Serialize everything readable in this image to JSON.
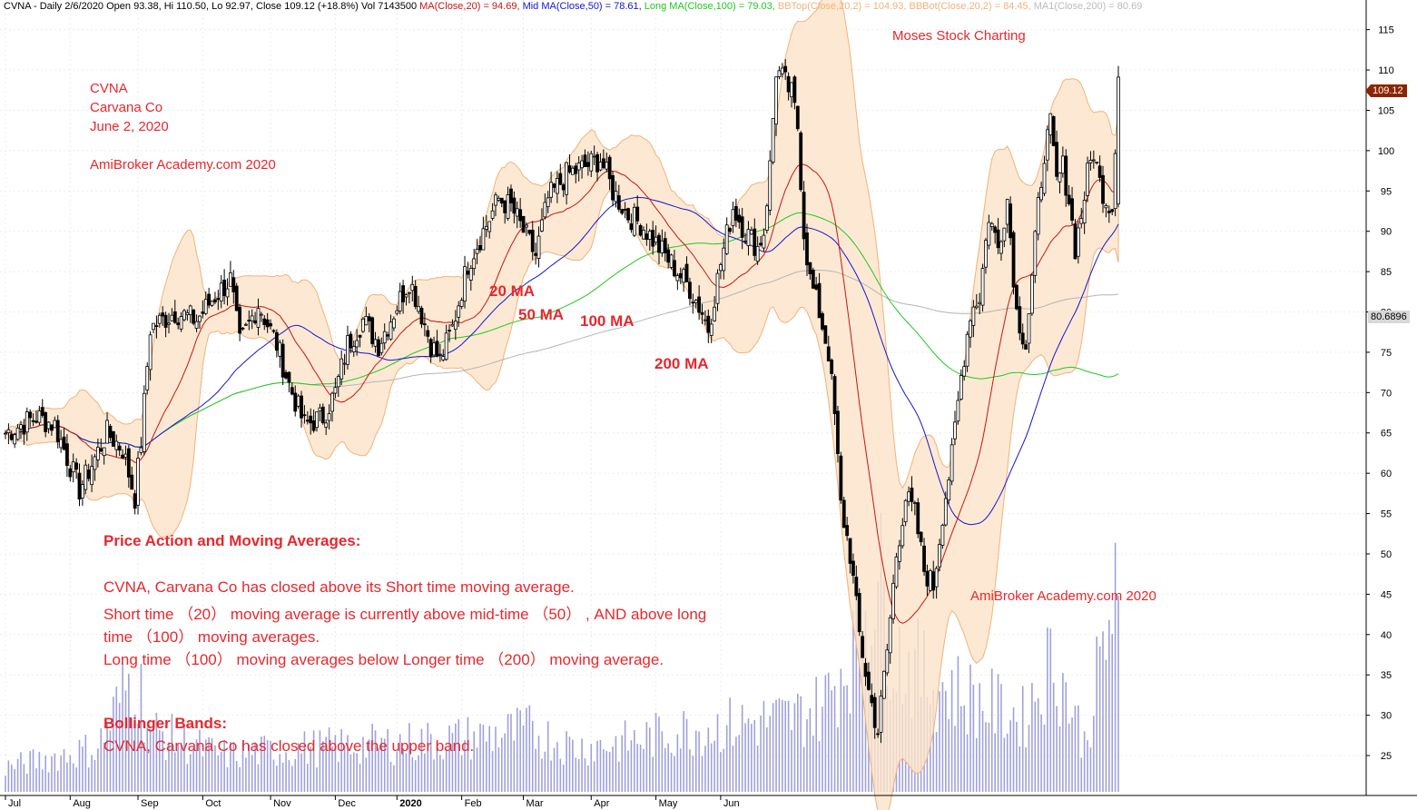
{
  "header": {
    "symbol_info": "CVNA - Daily 2/6/2020 Open 93.38, Hi 110.50, Lo 92.97, Close 109.12 (+18.8%) Vol 7143500",
    "ma20": "MA(Close,20) = 94.69,",
    "ma50": "Mid MA(Close,50) = 78.61,",
    "ma100": "Long MA(Close,100) = 79.03,",
    "bbtop": "BBTop(Close,20,2) = 104.93,",
    "bbbot": "BBBot(Close,20,2) = 84.45,",
    "ma200": "MA1(Close,200) = 80.69"
  },
  "annotations": {
    "ticker": "CVNA",
    "company": "Carvana Co",
    "date": "June 2, 2020",
    "brand_top": "AmiBroker Academy.com  2020",
    "brand_right": "AmiBroker Academy.com  2020",
    "moses": "Moses Stock Charting",
    "label_20ma": "20 MA",
    "label_50ma": "50 MA",
    "label_100ma": "100 MA",
    "label_200ma": "200 MA",
    "section1_title": "Price Action and Moving Averages:",
    "line1": "CVNA, Carvana Co has closed above its Short time moving average.",
    "line2": "Short time （20） moving average is currently above mid-time （50） , AND above long",
    "line3": "time （100） moving averages.",
    "line4": "Long time （100）  moving averages below Longer time （200）  moving average.",
    "section2_title": "Bollinger Bands:",
    "line5": "CVNA, Carvana Co has closed above the upper band."
  },
  "price_tags": {
    "last_close": "109.12",
    "ma200_value": "80.6896"
  },
  "colors": {
    "ma20": "#c81414",
    "ma50": "#1414d2",
    "ma100": "#1ec81e",
    "ma200": "#b4b4b4",
    "band_fill": "#fde3c8",
    "band_edge": "#f0b27a",
    "volume": "#a0a0dc",
    "annotation": "#e8272d"
  },
  "chart_data": {
    "type": "candlestick",
    "title": "CVNA - Daily",
    "y_axis": {
      "ticks": [
        25,
        30,
        35,
        40,
        45,
        50,
        55,
        60,
        65,
        70,
        75,
        80,
        85,
        90,
        95,
        100,
        105,
        110,
        115
      ],
      "ylim": [
        20.5,
        118
      ]
    },
    "x_axis": {
      "labels": [
        "Jul",
        "Aug",
        "Sep",
        "Oct",
        "Nov",
        "Dec",
        "2020",
        "Feb",
        "Mar",
        "Apr",
        "May",
        "Jun"
      ]
    },
    "close_waypoints": [
      [
        0,
        65
      ],
      [
        10,
        67
      ],
      [
        16,
        66
      ],
      [
        24,
        58
      ],
      [
        33,
        65
      ],
      [
        38,
        63
      ],
      [
        42,
        57
      ],
      [
        44,
        64
      ],
      [
        47,
        78
      ],
      [
        55,
        80
      ],
      [
        62,
        79
      ],
      [
        68,
        82
      ],
      [
        73,
        84
      ],
      [
        76,
        76
      ],
      [
        82,
        81
      ],
      [
        88,
        76
      ],
      [
        92,
        71
      ],
      [
        97,
        66
      ],
      [
        103,
        67
      ],
      [
        107,
        70
      ],
      [
        111,
        76
      ],
      [
        116,
        79
      ],
      [
        121,
        76
      ],
      [
        126,
        80
      ],
      [
        131,
        84
      ],
      [
        134,
        81
      ],
      [
        138,
        76
      ],
      [
        141,
        74
      ],
      [
        145,
        78
      ],
      [
        150,
        86
      ],
      [
        155,
        90
      ],
      [
        160,
        94
      ],
      [
        164,
        93
      ],
      [
        168,
        90
      ],
      [
        172,
        87
      ],
      [
        176,
        94
      ],
      [
        182,
        97
      ],
      [
        188,
        98
      ],
      [
        193,
        99
      ],
      [
        197,
        95
      ],
      [
        202,
        92
      ],
      [
        206,
        91
      ],
      [
        210,
        89
      ],
      [
        214,
        87
      ],
      [
        218,
        85
      ],
      [
        222,
        83
      ],
      [
        226,
        80
      ],
      [
        228,
        78
      ],
      [
        232,
        86
      ],
      [
        236,
        93
      ],
      [
        240,
        90
      ],
      [
        244,
        88
      ],
      [
        246,
        90
      ],
      [
        248,
        98
      ],
      [
        250,
        110
      ],
      [
        252,
        109
      ],
      [
        255,
        107
      ],
      [
        257,
        103
      ],
      [
        259,
        90
      ],
      [
        261,
        84
      ],
      [
        264,
        80
      ],
      [
        267,
        75
      ],
      [
        269,
        67
      ],
      [
        271,
        56
      ],
      [
        274,
        50
      ],
      [
        277,
        40
      ],
      [
        280,
        33
      ],
      [
        283,
        28
      ],
      [
        286,
        38
      ],
      [
        289,
        50
      ],
      [
        292,
        57
      ],
      [
        295,
        55
      ],
      [
        298,
        48
      ],
      [
        301,
        46
      ],
      [
        304,
        55
      ],
      [
        307,
        62
      ],
      [
        310,
        72
      ],
      [
        313,
        80
      ],
      [
        316,
        82
      ],
      [
        319,
        92
      ],
      [
        322,
        88
      ],
      [
        325,
        94
      ],
      [
        328,
        80
      ],
      [
        331,
        76
      ],
      [
        333,
        84
      ],
      [
        335,
        93
      ],
      [
        337,
        100
      ],
      [
        339,
        103
      ],
      [
        341,
        96
      ],
      [
        343,
        98
      ],
      [
        345,
        94
      ],
      [
        347,
        88
      ],
      [
        349,
        92
      ],
      [
        351,
        97
      ],
      [
        353,
        100
      ],
      [
        355,
        96
      ],
      [
        357,
        94
      ],
      [
        359,
        93
      ],
      [
        361,
        109.12
      ]
    ],
    "volume_waypoints": [
      [
        0,
        10
      ],
      [
        30,
        18
      ],
      [
        42,
        50
      ],
      [
        47,
        25
      ],
      [
        70,
        15
      ],
      [
        100,
        18
      ],
      [
        130,
        20
      ],
      [
        150,
        22
      ],
      [
        170,
        25
      ],
      [
        185,
        18
      ],
      [
        200,
        20
      ],
      [
        220,
        25
      ],
      [
        240,
        28
      ],
      [
        255,
        30
      ],
      [
        265,
        35
      ],
      [
        275,
        60
      ],
      [
        282,
        90
      ],
      [
        290,
        55
      ],
      [
        300,
        45
      ],
      [
        310,
        40
      ],
      [
        320,
        35
      ],
      [
        330,
        30
      ],
      [
        340,
        55
      ],
      [
        350,
        20
      ],
      [
        360,
        80
      ]
    ],
    "moving_averages": {
      "ma20_last": 94.69,
      "ma50_last": 78.61,
      "ma100_last": 79.03,
      "ma200_last": 80.69,
      "bbtop_last": 104.93,
      "bbbot_last": 84.45
    },
    "last_bar": {
      "date": "2/6/2020",
      "open": 93.38,
      "high": 110.5,
      "low": 92.97,
      "close": 109.12,
      "change_pct": 18.8,
      "volume": 7143500
    }
  }
}
